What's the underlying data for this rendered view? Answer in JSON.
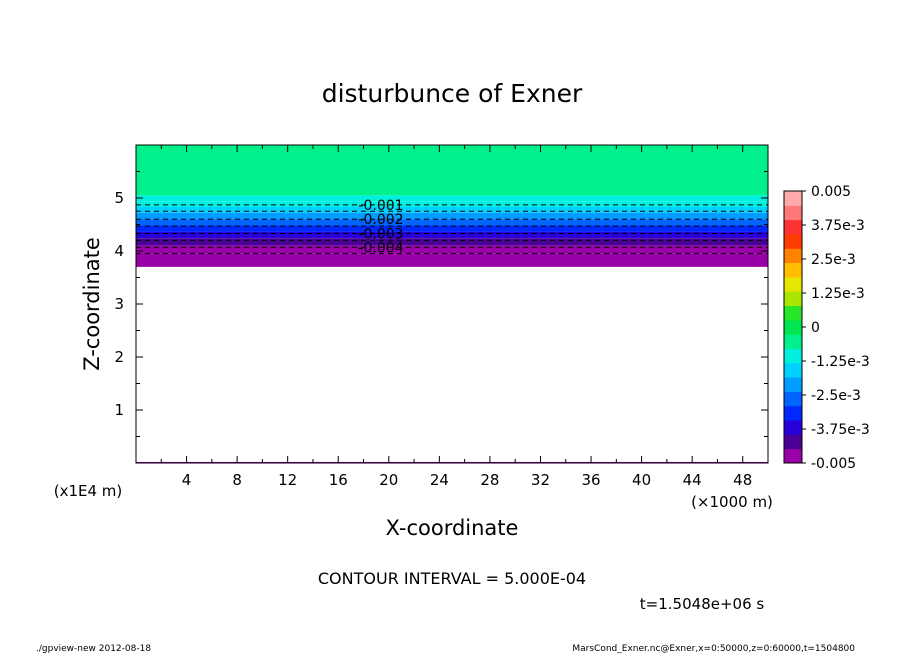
{
  "chart_data": {
    "type": "heatmap",
    "title": "disturbunce of Exner",
    "xlabel": "X-coordinate",
    "ylabel": "Z-coordinate",
    "x_unit": "(×1000 m)",
    "y_unit": "(x1E4 m)",
    "xlim": [
      0,
      50
    ],
    "ylim": [
      0,
      6
    ],
    "x_ticks": [
      "4",
      "8",
      "12",
      "16",
      "20",
      "24",
      "28",
      "32",
      "36",
      "40",
      "44",
      "48"
    ],
    "y_ticks": [
      "1",
      "2",
      "3",
      "4",
      "5"
    ],
    "contour_interval_text": "CONTOUR INTERVAL = 5.000E-04",
    "time_text": "t=1.5048e+06 s",
    "colorbar": {
      "range": [
        -0.005,
        0.005
      ],
      "labels": [
        "0.005",
        "3.75e-3",
        "2.5e-3",
        "1.25e-3",
        "0",
        "-1.25e-3",
        "-2.5e-3",
        "-3.75e-3",
        "-0.005"
      ],
      "colors": [
        "#9a00a8",
        "#4a0096",
        "#2800d8",
        "#0028ff",
        "#0064ff",
        "#009cff",
        "#00d2ff",
        "#00f0e0",
        "#00f08c",
        "#00e650",
        "#28e628",
        "#aae600",
        "#e6e600",
        "#ffbe00",
        "#ff8200",
        "#ff3c00",
        "#ff3232",
        "#ff7878",
        "#ffaaaa"
      ]
    },
    "contours": [
      {
        "level": -0.001,
        "label": "-0.001",
        "z": 4.87
      },
      {
        "level": -0.0015,
        "label": "",
        "z": 4.75
      },
      {
        "level": -0.002,
        "label": "-0.002",
        "z": 4.6
      },
      {
        "level": -0.0025,
        "label": "",
        "z": 4.47
      },
      {
        "level": -0.003,
        "label": "-0.003",
        "z": 4.33
      },
      {
        "level": -0.0035,
        "label": "",
        "z": 4.2
      },
      {
        "level": -0.004,
        "label": "-0.004",
        "z": 4.07
      },
      {
        "level": -0.0045,
        "label": "",
        "z": 3.95
      }
    ],
    "bands": [
      {
        "z0": 5.05,
        "z1": 6.0,
        "value": -0.0003
      },
      {
        "z0": 4.93,
        "z1": 5.05,
        "value": -0.0008
      },
      {
        "z0": 4.83,
        "z1": 4.93,
        "value": -0.0013
      },
      {
        "z0": 4.72,
        "z1": 4.83,
        "value": -0.0018
      },
      {
        "z0": 4.6,
        "z1": 4.72,
        "value": -0.0023
      },
      {
        "z0": 4.48,
        "z1": 4.6,
        "value": -0.0028
      },
      {
        "z0": 4.36,
        "z1": 4.48,
        "value": -0.0033
      },
      {
        "z0": 4.24,
        "z1": 4.36,
        "value": -0.0037
      },
      {
        "z0": 4.1,
        "z1": 4.24,
        "value": -0.0042
      },
      {
        "z0": 3.95,
        "z1": 4.1,
        "value": -0.0046
      },
      {
        "z0": 3.7,
        "z1": 3.95,
        "value": -0.005
      }
    ],
    "grid": false
  },
  "footer": {
    "left": "./gpview-new  2012-08-18",
    "right": "MarsCond_Exner.nc@Exner,x=0:50000,z=0:60000,t=1504800"
  }
}
